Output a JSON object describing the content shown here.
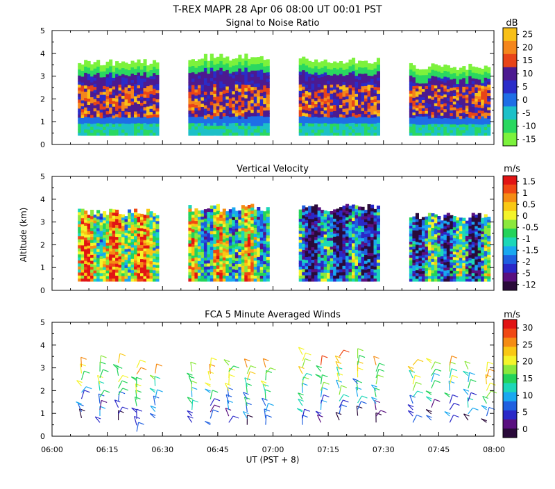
{
  "header": {
    "line1": "T-REX   MAPR 28 Apr 06   08:00 UT   00:01   PST"
  },
  "axes": {
    "ylabel": "Altitude (km)",
    "xlabel": "UT  (PST + 8)",
    "x_ticks": [
      "06:00",
      "06:15",
      "06:30",
      "06:45",
      "07:00",
      "07:15",
      "07:30",
      "07:45",
      "08:00"
    ],
    "y_ticks": [
      "0",
      "1",
      "2",
      "3",
      "4",
      "5"
    ],
    "ylim": [
      0,
      5
    ]
  },
  "colors": {
    "scale": [
      "#2a0a3a",
      "#5a1080",
      "#2a28c8",
      "#1f5fe0",
      "#19a8f0",
      "#1cd7b8",
      "#23d35a",
      "#8be83c",
      "#f4f42a",
      "#f9c814",
      "#f58c14",
      "#f04814",
      "#e11414"
    ],
    "snr_scale": [
      "#7cf23c",
      "#2ad860",
      "#1cc0c8",
      "#1e6ee6",
      "#2a2cc8",
      "#4c1a90",
      "#e84418",
      "#f4861c",
      "#f8c018"
    ]
  },
  "chart_data": [
    {
      "type": "heatmap",
      "id": "snr",
      "title": "Signal to Noise Ratio",
      "units": "dB",
      "colorbar_ticks": [
        "25",
        "20",
        "15",
        "10",
        "5",
        "0",
        "-5",
        "-10",
        "-15"
      ],
      "x_range": [
        "06:00",
        "08:00"
      ],
      "ylim": [
        0,
        5
      ],
      "ylabel": "",
      "segments": [
        {
          "start": "06:07",
          "end": "06:29",
          "top_km": 3.8
        },
        {
          "start": "06:37",
          "end": "06:59",
          "top_km": 4.0
        },
        {
          "start": "07:07",
          "end": "07:29",
          "top_km": 3.9
        },
        {
          "start": "07:37",
          "end": "07:59",
          "top_km": 3.6
        }
      ],
      "data_bottom_km": 0.4
    },
    {
      "type": "heatmap",
      "id": "vvel",
      "title": "Vertical Velocity",
      "units": "m/s",
      "colorbar_ticks": [
        "1.5",
        "1",
        "0.5",
        "0",
        "-0.5",
        "-1",
        "-1.5",
        "-2",
        "-5",
        "-12"
      ],
      "x_range": [
        "06:00",
        "08:00"
      ],
      "ylim": [
        0,
        5
      ],
      "ylabel": "Altitude (km)",
      "segments": [
        {
          "start": "06:07",
          "end": "06:29",
          "top_km": 3.6
        },
        {
          "start": "06:37",
          "end": "06:59",
          "top_km": 3.8
        },
        {
          "start": "07:07",
          "end": "07:29",
          "top_km": 3.8
        },
        {
          "start": "07:37",
          "end": "07:59",
          "top_km": 3.4
        }
      ],
      "data_bottom_km": 0.4
    },
    {
      "type": "scatter",
      "id": "winds",
      "title": "FCA 5 Minute Averaged Winds",
      "units": "m/s",
      "colorbar_ticks": [
        "30",
        "25",
        "20",
        "15",
        "10",
        "5",
        "0"
      ],
      "x_range": [
        "06:00",
        "08:00"
      ],
      "ylim": [
        0,
        5
      ],
      "xlabel": "UT  (PST + 8)",
      "ylabel": "",
      "barb_columns": [
        "06:08",
        "06:13",
        "06:18",
        "06:23",
        "06:28",
        "06:38",
        "06:43",
        "06:48",
        "06:53",
        "06:58",
        "07:08",
        "07:13",
        "07:18",
        "07:23",
        "07:28",
        "07:38",
        "07:43",
        "07:48",
        "07:53",
        "07:58"
      ],
      "barb_top_km": [
        3.3,
        3.3,
        3.5,
        3.2,
        3.0,
        3.1,
        3.2,
        3.4,
        3.3,
        3.2,
        3.7,
        3.3,
        3.6,
        3.6,
        3.2,
        3.3,
        3.3,
        3.2,
        3.2,
        3.0
      ],
      "barb_bottom_km": [
        0.8,
        0.6,
        0.7,
        0.2,
        0.8,
        0.6,
        0.5,
        0.6,
        0.5,
        0.5,
        0.5,
        0.6,
        0.7,
        0.9,
        0.6,
        0.6,
        0.7,
        0.6,
        0.7,
        0.6
      ]
    }
  ]
}
